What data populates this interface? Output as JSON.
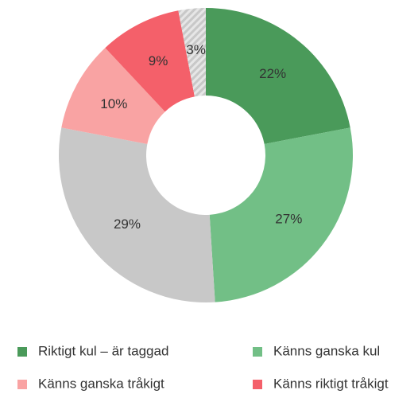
{
  "chart_data": {
    "type": "donut",
    "categories": [
      "Riktigt kul – är taggad",
      "Känns ganska kul",
      null,
      "Känns ganska tråkigt",
      "Känns riktigt tråkigt",
      null
    ],
    "values": [
      22,
      27,
      29,
      10,
      9,
      3
    ],
    "value_labels": [
      "22%",
      "27%",
      "29%",
      "10%",
      "9%",
      "3%"
    ],
    "colors": [
      "#4a9a5a",
      "#72bf86",
      "#c8c8c8",
      "#f9a3a3",
      "#f4606a",
      "hatch"
    ]
  }
}
